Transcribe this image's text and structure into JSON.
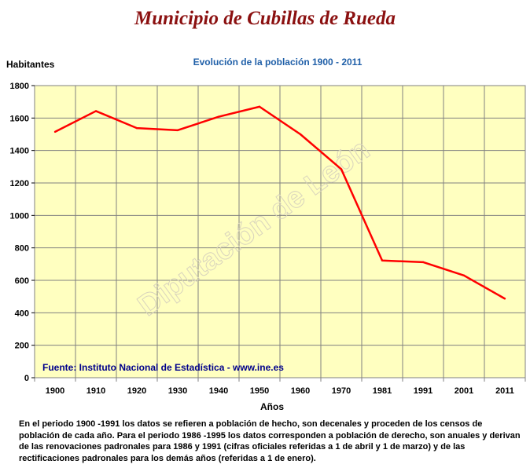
{
  "page_title": "Municipio de Cubillas de Rueda",
  "watermark": "Diputación de León",
  "source_text": "Fuente: Instituto Nacional de Estadística - www.ine.es",
  "footnote": "En el periodo 1900 -1991 los datos se refieren a población de hecho, son decenales y proceden de los censos de población de cada año. Para el periodo 1986 -1995 los datos corresponden a población de derecho, son anuales y derivan de las renovaciones padronales para 1986 y 1991 (cifras oficiales referidas a 1 de abril y 1 de marzo) y de las rectificaciones padronales para los demás años (referidas a 1 de enero).",
  "colors": {
    "title": "#8b1010",
    "subtitle": "#1f5fa8",
    "source": "#00008b",
    "plot_background": "#ffffc0",
    "grid": "#808080",
    "line": "#ff0000"
  },
  "chart_data": {
    "type": "line",
    "title": "Evolución de la población 1900 - 2011",
    "xlabel": "Años",
    "ylabel": "Habitantes",
    "categories": [
      "1900",
      "1910",
      "1920",
      "1930",
      "1940",
      "1950",
      "1960",
      "1970",
      "1981",
      "1991",
      "2001",
      "2011"
    ],
    "series": [
      {
        "values": [
          1515,
          1643,
          1538,
          1525,
          1608,
          1670,
          1500,
          1285,
          722,
          712,
          630,
          487
        ]
      }
    ],
    "ylim": [
      0,
      1800
    ],
    "yticks": [
      "0",
      "200",
      "400",
      "600",
      "800",
      "1000",
      "1200",
      "1400",
      "1600",
      "1800"
    ],
    "grid": true,
    "legend": "none"
  }
}
